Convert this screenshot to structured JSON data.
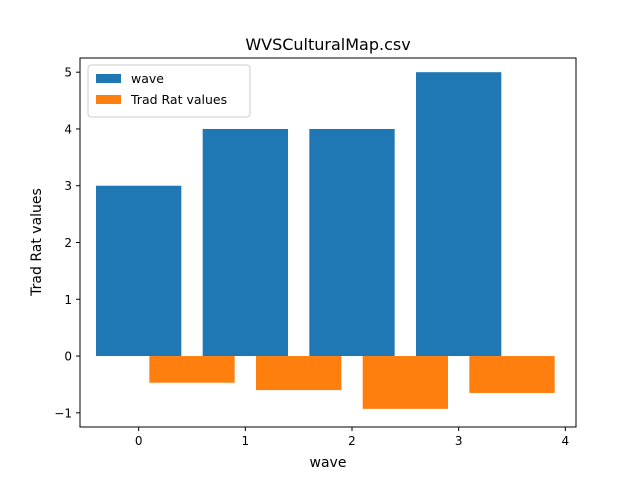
{
  "chart_data": {
    "type": "bar",
    "title": "WVSCulturalMap.csv",
    "xlabel": "wave",
    "ylabel": "Trad Rat values",
    "xlim": [
      -0.55,
      4.1
    ],
    "ylim": [
      -1.25,
      5.25
    ],
    "xticks": [
      0,
      1,
      2,
      3,
      4
    ],
    "yticks": [
      -1,
      0,
      1,
      2,
      3,
      4,
      5
    ],
    "xtick_labels": [
      "0",
      "1",
      "2",
      "3",
      "4"
    ],
    "ytick_labels": [
      "−1",
      "0",
      "1",
      "2",
      "3",
      "4",
      "5"
    ],
    "grid": false,
    "legend_position": "top-left",
    "series": [
      {
        "name": "wave",
        "color": "#1f77b4",
        "bar_width": 0.8,
        "x": [
          0,
          1,
          2,
          3
        ],
        "values": [
          3,
          4,
          4,
          5
        ]
      },
      {
        "name": "Trad Rat values",
        "color": "#ff7f0e",
        "bar_width": 0.8,
        "x": [
          0.5,
          1.5,
          2.5,
          3.5
        ],
        "values": [
          -0.47,
          -0.6,
          -0.93,
          -0.65
        ]
      }
    ]
  }
}
